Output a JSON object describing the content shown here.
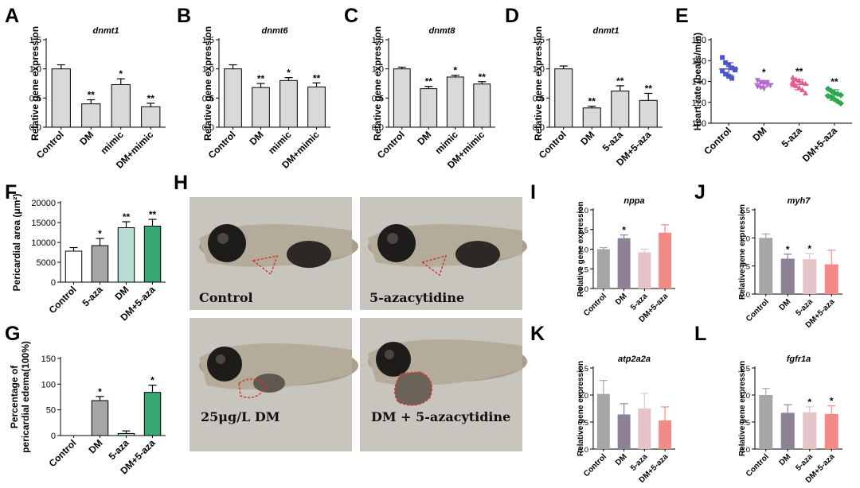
{
  "panel_letters": [
    "A",
    "B",
    "C",
    "D",
    "E",
    "F",
    "G",
    "H",
    "I",
    "J",
    "K",
    "L"
  ],
  "photo_labels": [
    "Control",
    "5-azacytidine",
    "25μg/L  DM",
    "DM + 5-azacytidine"
  ],
  "chart_data": [
    {
      "id": "A",
      "type": "bar",
      "title": "dnmt1",
      "ylabel": "Relative gene expression",
      "categories": [
        "Control",
        "DM",
        "mimic",
        "DM+mimic"
      ],
      "values": [
        1.0,
        0.4,
        0.73,
        0.35
      ],
      "errors": [
        0.07,
        0.07,
        0.1,
        0.06
      ],
      "significance": [
        "",
        "**",
        "*",
        "**"
      ],
      "ylim": [
        0,
        1.5
      ],
      "yticks": [
        "0.0",
        "0.5",
        "1.0",
        "1.5"
      ],
      "colors": [
        "#d9d9d9"
      ]
    },
    {
      "id": "B",
      "type": "bar",
      "title": "dnmt6",
      "ylabel": "Relative gene expression",
      "categories": [
        "Control",
        "DM",
        "mimic",
        "DM+mimic"
      ],
      "values": [
        1.0,
        0.68,
        0.8,
        0.69
      ],
      "errors": [
        0.07,
        0.07,
        0.05,
        0.07
      ],
      "significance": [
        "",
        "**",
        "*",
        "**"
      ],
      "ylim": [
        0,
        1.5
      ],
      "yticks": [
        "0.0",
        "0.5",
        "1.0",
        "1.5"
      ],
      "colors": [
        "#d9d9d9"
      ]
    },
    {
      "id": "C",
      "type": "bar",
      "title": "dnmt8",
      "ylabel": "Relative gene expression",
      "categories": [
        "Control",
        "DM",
        "mimic",
        "DM+mimic"
      ],
      "values": [
        1.0,
        0.66,
        0.86,
        0.74
      ],
      "errors": [
        0.03,
        0.04,
        0.03,
        0.04
      ],
      "significance": [
        "",
        "**",
        "*",
        "**"
      ],
      "ylim": [
        0,
        1.5
      ],
      "yticks": [
        "0.0",
        "0.5",
        "1.0",
        "1.5"
      ],
      "colors": [
        "#d9d9d9"
      ]
    },
    {
      "id": "D",
      "type": "bar",
      "title": "dnmt1",
      "ylabel": "Relative gene expression",
      "categories": [
        "Control",
        "DM",
        "5-aza",
        "DM+5-aza"
      ],
      "values": [
        1.0,
        0.33,
        0.62,
        0.46
      ],
      "errors": [
        0.05,
        0.03,
        0.09,
        0.12
      ],
      "significance": [
        "",
        "**",
        "**",
        "**"
      ],
      "ylim": [
        0,
        1.5
      ],
      "yticks": [
        "0.0",
        "0.5",
        "1.0",
        "1.5"
      ],
      "colors": [
        "#d9d9d9"
      ]
    },
    {
      "id": "E",
      "type": "scatter",
      "ylabel": "Heart rate (beats/min)",
      "categories": [
        "Control",
        "DM",
        "5-aza",
        "DM+5-aza"
      ],
      "points": [
        [
          163,
          158,
          156,
          153,
          151,
          150,
          147,
          145,
          143,
          152
        ],
        [
          141,
          139,
          138,
          137,
          136,
          135,
          134,
          133,
          139
        ],
        [
          144,
          142,
          141,
          139,
          138,
          137,
          136,
          134,
          132,
          129,
          140
        ],
        [
          133,
          131,
          129,
          128,
          127,
          126,
          125,
          123,
          121,
          119
        ]
      ],
      "means": [
        152,
        138,
        137,
        127
      ],
      "sds": [
        6,
        3,
        5,
        5
      ],
      "significance": [
        "",
        "*",
        "**",
        "**"
      ],
      "ylim": [
        100,
        180
      ],
      "yticks": [
        "100",
        "120",
        "140",
        "160",
        "180"
      ],
      "colors": [
        "#4b57c5",
        "#b46ad0",
        "#e05d91",
        "#2ea84f"
      ]
    },
    {
      "id": "F",
      "type": "bar",
      "ylabel": "Pericardial area (μm²)",
      "categories": [
        "Control",
        "5-aza",
        "DM",
        "DM+5-aza"
      ],
      "values": [
        7800,
        9200,
        13700,
        14100
      ],
      "errors": [
        900,
        1800,
        1500,
        1700
      ],
      "significance": [
        "",
        "*",
        "**",
        "**"
      ],
      "ylim": [
        0,
        20000
      ],
      "yticks": [
        "0",
        "5000",
        "10000",
        "15000",
        "20000"
      ],
      "colors": [
        "#ffffff",
        "#a6a6a6",
        "#b8dcd3",
        "#3aa873"
      ]
    },
    {
      "id": "G",
      "type": "bar",
      "ylabel_lines": [
        "Percentage of",
        "pericardial edema(100%)"
      ],
      "categories": [
        "Control",
        "DM",
        "5-aza",
        "DM+5-aza"
      ],
      "values": [
        0,
        68,
        4,
        84
      ],
      "errors": [
        0,
        8,
        5,
        14
      ],
      "significance": [
        "",
        "*",
        "",
        "*"
      ],
      "ylim": [
        0,
        150
      ],
      "yticks": [
        "0",
        "50",
        "100",
        "150"
      ],
      "colors": [
        "#ffffff",
        "#a6a6a6",
        "#b8dcd3",
        "#3aa873"
      ]
    },
    {
      "id": "I",
      "type": "bar",
      "title": "nppa",
      "ylabel": "Relative gene expression",
      "categories": [
        "Control",
        "DM",
        "5-aza",
        "DM+5-aza"
      ],
      "values": [
        1.0,
        1.28,
        0.92,
        1.42
      ],
      "errors": [
        0.04,
        0.08,
        0.08,
        0.2
      ],
      "significance": [
        "",
        "*",
        "",
        ""
      ],
      "ylim": [
        0,
        2.0
      ],
      "yticks": [
        "0.0",
        "0.5",
        "1.0",
        "1.5",
        "2.0"
      ],
      "colors": [
        "#a6a6a6",
        "#8c8195",
        "#e4c4c7",
        "#f28a88"
      ]
    },
    {
      "id": "J",
      "type": "bar",
      "title": "myh7",
      "ylabel": "Relative gene expression",
      "categories": [
        "Control",
        "DM",
        "5-aza",
        "DM+5-aza"
      ],
      "values": [
        1.0,
        0.63,
        0.62,
        0.53
      ],
      "errors": [
        0.07,
        0.08,
        0.1,
        0.25
      ],
      "significance": [
        "",
        "*",
        "*",
        ""
      ],
      "ylim": [
        0,
        1.5
      ],
      "yticks": [
        "0.0",
        "0.5",
        "1.0",
        "1.5"
      ],
      "colors": [
        "#a6a6a6",
        "#8c8195",
        "#e4c4c7",
        "#f28a88"
      ]
    },
    {
      "id": "K",
      "type": "bar",
      "title": "atp2a2a",
      "ylabel": "Relative gene expression",
      "categories": [
        "Control",
        "DM",
        "5-aza",
        "DM+5-aza"
      ],
      "values": [
        1.02,
        0.64,
        0.75,
        0.53
      ],
      "errors": [
        0.25,
        0.2,
        0.28,
        0.25
      ],
      "significance": [
        "",
        "",
        "",
        ""
      ],
      "ylim": [
        0,
        1.5
      ],
      "yticks": [
        "0.0",
        "0.5",
        "1.0",
        "1.5"
      ],
      "colors": [
        "#a6a6a6",
        "#8c8195",
        "#e4c4c7",
        "#f28a88"
      ]
    },
    {
      "id": "L",
      "type": "bar",
      "title": "fgfr1a",
      "ylabel": "Relative gene expression",
      "categories": [
        "Control",
        "DM",
        "5-aza",
        "DM+5-aza"
      ],
      "values": [
        1.0,
        0.67,
        0.68,
        0.65
      ],
      "errors": [
        0.12,
        0.15,
        0.1,
        0.15
      ],
      "significance": [
        "",
        "",
        "*",
        "*"
      ],
      "ylim": [
        0,
        1.5
      ],
      "yticks": [
        "0.0",
        "0.5",
        "1.0",
        "1.5"
      ],
      "colors": [
        "#a6a6a6",
        "#8c8195",
        "#e4c4c7",
        "#f28a88"
      ]
    }
  ]
}
